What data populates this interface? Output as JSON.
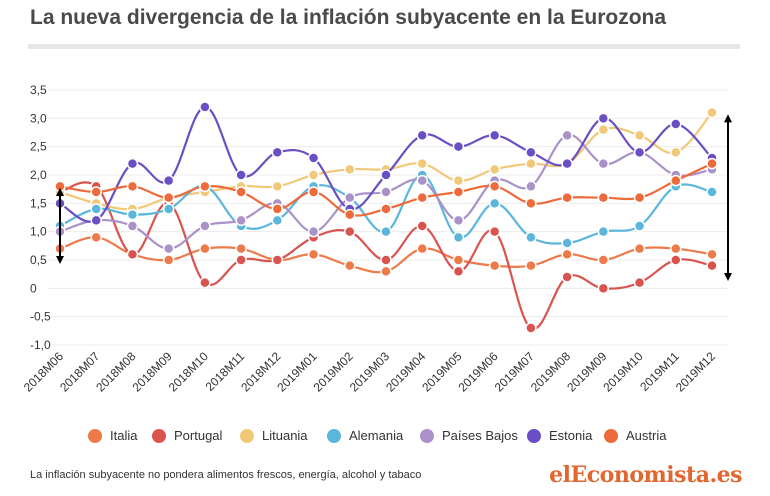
{
  "title": "La nueva divergencia de la inflación subyacente en la Eurozona",
  "footnote": "La inflación subyacente no pondera alimentos frescos, energía, alcohol y tabaco",
  "brand": "elEconomista.es",
  "chart_data": {
    "type": "line",
    "categories": [
      "2018M06",
      "2018M07",
      "2018M08",
      "2018M09",
      "2018M10",
      "2018M11",
      "2018M12",
      "2019M01",
      "2019M02",
      "2019M03",
      "2019M04",
      "2019M05",
      "2019M06",
      "2019M07",
      "2019M08",
      "2019M09",
      "2019M10",
      "2019M11",
      "2019M12"
    ],
    "y_ticks": [
      -1.0,
      -0.5,
      0,
      0.5,
      1.0,
      1.5,
      2.0,
      2.5,
      3.0,
      3.5
    ],
    "y_tick_labels": [
      "-1,0",
      "-0,5",
      "0",
      "0,5",
      "1,0",
      "1,5",
      "2,0",
      "2,5",
      "3,0",
      "3,5"
    ],
    "ylim": [
      -1.0,
      3.5
    ],
    "grid": true,
    "legend_position": "bottom",
    "series": [
      {
        "name": "Italia",
        "color": "#ee7a4a",
        "values": [
          0.7,
          0.9,
          0.6,
          0.5,
          0.7,
          0.7,
          0.5,
          0.6,
          0.4,
          0.3,
          0.7,
          0.5,
          0.4,
          0.4,
          0.6,
          0.5,
          0.7,
          0.7,
          0.6
        ]
      },
      {
        "name": "Portugal",
        "color": "#d9534f",
        "values": [
          1.7,
          1.8,
          0.6,
          1.5,
          0.1,
          0.5,
          0.5,
          0.9,
          1.0,
          0.5,
          1.1,
          0.3,
          1.0,
          -0.7,
          0.2,
          0.0,
          0.1,
          0.5,
          0.4
        ]
      },
      {
        "name": "Lituania",
        "color": "#f0c878",
        "values": [
          1.7,
          1.5,
          1.4,
          1.6,
          1.7,
          1.8,
          1.8,
          2.0,
          2.1,
          2.1,
          2.2,
          1.9,
          2.1,
          2.2,
          2.2,
          2.8,
          2.7,
          2.4,
          3.1
        ]
      },
      {
        "name": "Alemania",
        "color": "#5bb6dc",
        "values": [
          1.1,
          1.4,
          1.3,
          1.4,
          1.8,
          1.1,
          1.2,
          1.8,
          1.6,
          1.0,
          2.0,
          0.9,
          1.5,
          0.9,
          0.8,
          1.0,
          1.1,
          1.8,
          1.7
        ]
      },
      {
        "name": "Países Bajos",
        "color": "#aa92c9",
        "values": [
          1.0,
          1.2,
          1.1,
          0.7,
          1.1,
          1.2,
          1.5,
          1.0,
          1.6,
          1.7,
          1.9,
          1.2,
          1.9,
          1.8,
          2.7,
          2.2,
          2.4,
          2.0,
          2.1
        ]
      },
      {
        "name": "Estonia",
        "color": "#6a4fc4",
        "values": [
          1.5,
          1.2,
          2.2,
          1.9,
          3.2,
          2.0,
          2.4,
          2.3,
          1.4,
          2.0,
          2.7,
          2.5,
          2.7,
          2.4,
          2.2,
          3.0,
          2.4,
          2.9,
          2.3
        ]
      },
      {
        "name": "Austria",
        "color": "#ee6a3a",
        "values": [
          1.8,
          1.7,
          1.8,
          1.6,
          1.8,
          1.7,
          1.4,
          1.7,
          1.3,
          1.4,
          1.6,
          1.7,
          1.8,
          1.5,
          1.6,
          1.6,
          1.6,
          1.9,
          2.2
        ]
      }
    ],
    "annotations": [
      {
        "type": "double-arrow",
        "x_category": "2018M06",
        "y_from": 0.5,
        "y_to": 1.7
      },
      {
        "type": "double-arrow",
        "x_category": "2019M12",
        "y_from": 0.2,
        "y_to": 3.0
      }
    ]
  }
}
